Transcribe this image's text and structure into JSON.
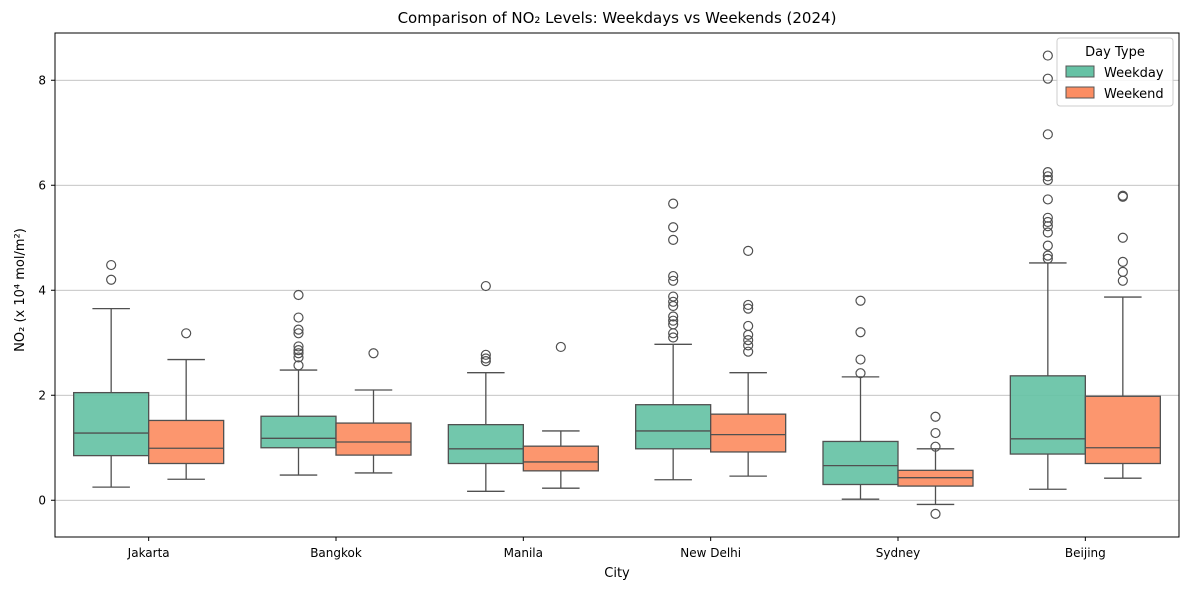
{
  "chart_data": {
    "type": "box",
    "title": "Comparison of NO₂ Levels: Weekdays vs Weekends (2024)",
    "xlabel": "City",
    "ylabel": "NO₂ (x 10⁴ mol/m²)",
    "ylim": [
      -0.7,
      8.9
    ],
    "yticks": [
      0,
      2,
      4,
      6,
      8
    ],
    "grid": "y",
    "legend": {
      "title": "Day Type",
      "position": "top-right"
    },
    "categories": [
      "Jakarta",
      "Bangkok",
      "Manila",
      "New Delhi",
      "Sydney",
      "Beijing"
    ],
    "series": [
      {
        "name": "Weekday",
        "color": "#66c2a5",
        "boxes": [
          {
            "whisker_low": 0.25,
            "q1": 0.85,
            "median": 1.28,
            "q3": 2.05,
            "whisker_high": 3.65,
            "outliers": [
              4.2,
              4.48
            ]
          },
          {
            "whisker_low": 0.48,
            "q1": 1.0,
            "median": 1.18,
            "q3": 1.6,
            "whisker_high": 2.48,
            "outliers": [
              2.57,
              2.72,
              2.8,
              2.86,
              2.93,
              3.18,
              3.25,
              3.48,
              3.91
            ]
          },
          {
            "whisker_low": 0.17,
            "q1": 0.7,
            "median": 0.98,
            "q3": 1.44,
            "whisker_high": 2.43,
            "outliers": [
              2.65,
              2.7,
              2.77,
              4.08
            ]
          },
          {
            "whisker_low": 0.39,
            "q1": 0.98,
            "median": 1.32,
            "q3": 1.82,
            "whisker_high": 2.97,
            "outliers": [
              3.1,
              3.18,
              3.35,
              3.42,
              3.5,
              3.7,
              3.78,
              3.88,
              4.18,
              4.27,
              4.96,
              5.2,
              5.65
            ]
          },
          {
            "whisker_low": 0.02,
            "q1": 0.3,
            "median": 0.66,
            "q3": 1.12,
            "whisker_high": 2.35,
            "outliers": [
              2.42,
              2.68,
              3.2,
              3.8
            ]
          },
          {
            "whisker_low": 0.21,
            "q1": 0.88,
            "median": 1.17,
            "q3": 2.37,
            "whisker_high": 4.52,
            "outliers": [
              4.6,
              4.66,
              4.85,
              5.1,
              5.22,
              5.3,
              5.38,
              5.73,
              6.1,
              6.17,
              6.25,
              6.97,
              8.03,
              8.47
            ]
          }
        ]
      },
      {
        "name": "Weekend",
        "color": "#fc8d62",
        "boxes": [
          {
            "whisker_low": 0.4,
            "q1": 0.7,
            "median": 0.99,
            "q3": 1.52,
            "whisker_high": 2.68,
            "outliers": [
              3.18
            ]
          },
          {
            "whisker_low": 0.52,
            "q1": 0.86,
            "median": 1.11,
            "q3": 1.47,
            "whisker_high": 2.1,
            "outliers": [
              2.8
            ]
          },
          {
            "whisker_low": 0.23,
            "q1": 0.56,
            "median": 0.73,
            "q3": 1.03,
            "whisker_high": 1.32,
            "outliers": [
              2.92
            ]
          },
          {
            "whisker_low": 0.46,
            "q1": 0.92,
            "median": 1.25,
            "q3": 1.64,
            "whisker_high": 2.43,
            "outliers": [
              2.83,
              2.95,
              3.05,
              3.15,
              3.32,
              3.65,
              3.72,
              4.75
            ]
          },
          {
            "whisker_low": -0.08,
            "q1": 0.27,
            "median": 0.43,
            "q3": 0.57,
            "whisker_high": 0.98,
            "outliers": [
              -0.26,
              1.02,
              1.28,
              1.59
            ]
          },
          {
            "whisker_low": 0.42,
            "q1": 0.7,
            "median": 1.0,
            "q3": 1.98,
            "whisker_high": 3.87,
            "outliers": [
              4.18,
              4.35,
              4.54,
              5.0,
              5.78,
              5.8
            ]
          }
        ]
      }
    ]
  }
}
